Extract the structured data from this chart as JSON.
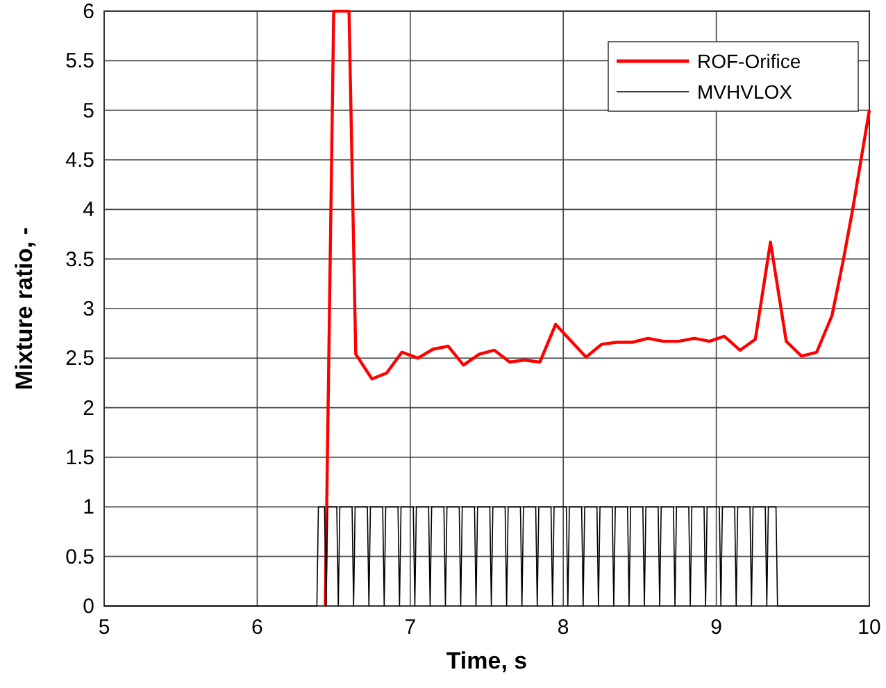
{
  "chart_data": {
    "type": "line",
    "xlabel": "Time, s",
    "ylabel": "Mixture ratio, -",
    "xlim": [
      5,
      10
    ],
    "xticks": [
      5,
      6,
      7,
      8,
      9,
      10
    ],
    "ylim": [
      0,
      6
    ],
    "yticks": [
      0,
      0.5,
      1,
      1.5,
      2,
      2.5,
      3,
      3.5,
      4,
      4.5,
      5,
      5.5,
      6
    ],
    "grid": true,
    "legend": "top right",
    "line_style": "solid",
    "series": [
      {
        "name": "ROF-Orifice",
        "color": "#ff0000",
        "x": [
          6.445,
          6.5,
          6.6,
          6.644,
          6.75,
          6.846,
          6.946,
          7.05,
          7.149,
          7.248,
          7.348,
          7.451,
          7.55,
          7.65,
          7.747,
          7.847,
          7.95,
          8.149,
          8.251,
          8.351,
          8.451,
          8.554,
          8.654,
          8.753,
          8.856,
          8.955,
          9.052,
          9.155,
          9.255,
          9.354,
          9.457,
          9.557,
          9.656,
          9.756,
          9.83,
          9.89,
          10
        ],
        "values": [
          0,
          6,
          6,
          2.54,
          2.29,
          2.35,
          2.56,
          2.5,
          2.59,
          2.62,
          2.43,
          2.54,
          2.58,
          2.46,
          2.48,
          2.46,
          2.84,
          2.51,
          2.64,
          2.66,
          2.66,
          2.7,
          2.67,
          2.67,
          2.7,
          2.67,
          2.72,
          2.58,
          2.69,
          3.67,
          2.67,
          2.52,
          2.56,
          2.93,
          3.49,
          3.99,
          5
        ]
      },
      {
        "name": "MVHVLOX",
        "color": "#000000",
        "x": [
          5,
          6.39,
          6.4,
          6.44,
          6.45,
          6.46,
          6.52,
          6.53,
          6.54,
          6.62,
          6.63,
          6.64,
          6.72,
          6.73,
          6.74,
          6.82,
          6.83,
          6.84,
          6.92,
          6.93,
          6.94,
          7.02,
          7.03,
          7.04,
          7.12,
          7.13,
          7.14,
          7.22,
          7.23,
          7.24,
          7.32,
          7.33,
          7.34,
          7.42,
          7.43,
          7.44,
          7.52,
          7.53,
          7.54,
          7.62,
          7.63,
          7.64,
          7.72,
          7.73,
          7.74,
          7.82,
          7.83,
          7.84,
          7.92,
          7.93,
          7.94,
          8.02,
          8.03,
          8.04,
          8.12,
          8.13,
          8.14,
          8.22,
          8.23,
          8.24,
          8.32,
          8.33,
          8.34,
          8.42,
          8.43,
          8.44,
          8.52,
          8.53,
          8.54,
          8.62,
          8.63,
          8.64,
          8.72,
          8.73,
          8.74,
          8.82,
          8.83,
          8.84,
          8.92,
          8.93,
          8.94,
          9.02,
          9.03,
          9.04,
          9.12,
          9.13,
          9.14,
          9.22,
          9.23,
          9.24,
          9.32,
          9.33,
          9.34,
          9.39,
          9.4,
          10
        ],
        "values": [
          0,
          0,
          1,
          1,
          0,
          1,
          1,
          0,
          1,
          1,
          0,
          1,
          1,
          0,
          1,
          1,
          0,
          1,
          1,
          0,
          1,
          1,
          0,
          1,
          1,
          0,
          1,
          1,
          0,
          1,
          1,
          0,
          1,
          1,
          0,
          1,
          1,
          0,
          1,
          1,
          0,
          1,
          1,
          0,
          1,
          1,
          0,
          1,
          1,
          0,
          1,
          1,
          0,
          1,
          1,
          0,
          1,
          1,
          0,
          1,
          1,
          0,
          1,
          1,
          0,
          1,
          1,
          0,
          1,
          1,
          0,
          1,
          1,
          0,
          1,
          1,
          0,
          1,
          1,
          0,
          1,
          1,
          0,
          1,
          1,
          0,
          1,
          1,
          0,
          1,
          1,
          0,
          1,
          1,
          0,
          0
        ]
      }
    ]
  }
}
